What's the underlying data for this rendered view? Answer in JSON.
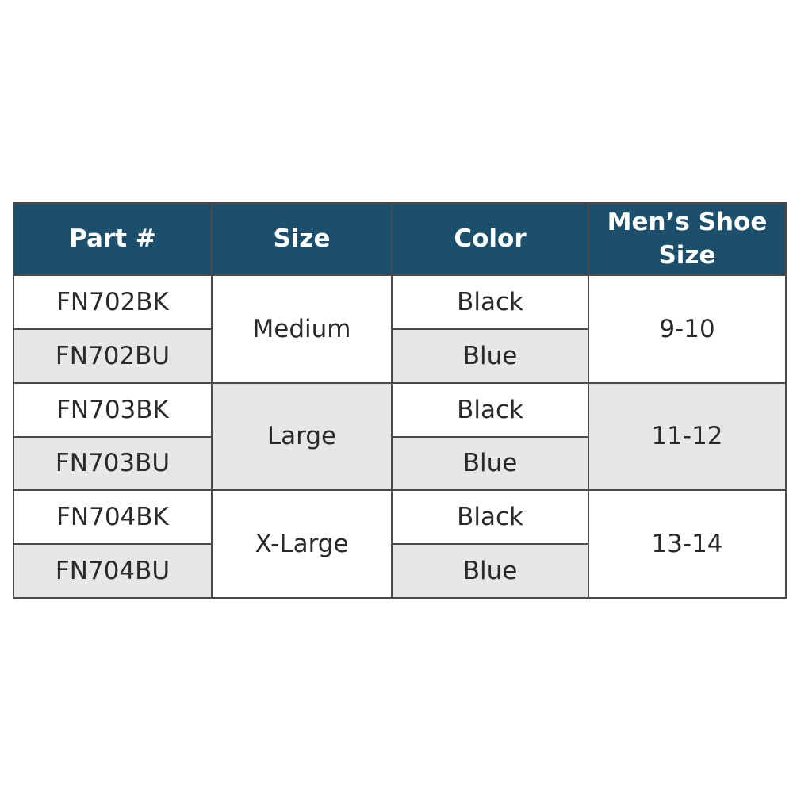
{
  "table": {
    "headers": [
      "Part #",
      "Size",
      "Color",
      "Men’s Shoe Size"
    ],
    "rows": [
      {
        "part": "FN702BK",
        "color": "Black"
      },
      {
        "part": "FN702BU",
        "color": "Blue"
      },
      {
        "part": "FN703BK",
        "color": "Black"
      },
      {
        "part": "FN703BU",
        "color": "Blue"
      },
      {
        "part": "FN704BK",
        "color": "Black"
      },
      {
        "part": "FN704BU",
        "color": "Blue"
      }
    ],
    "groups": [
      {
        "size": "Medium",
        "shoe_size": "9-10"
      },
      {
        "size": "Large",
        "shoe_size": "11-12"
      },
      {
        "size": "X-Large",
        "shoe_size": "13-14"
      }
    ]
  },
  "colors": {
    "header_bg": "#1b4f6b",
    "alt_row": "#e7e7e7",
    "border": "#4a4a4a"
  }
}
